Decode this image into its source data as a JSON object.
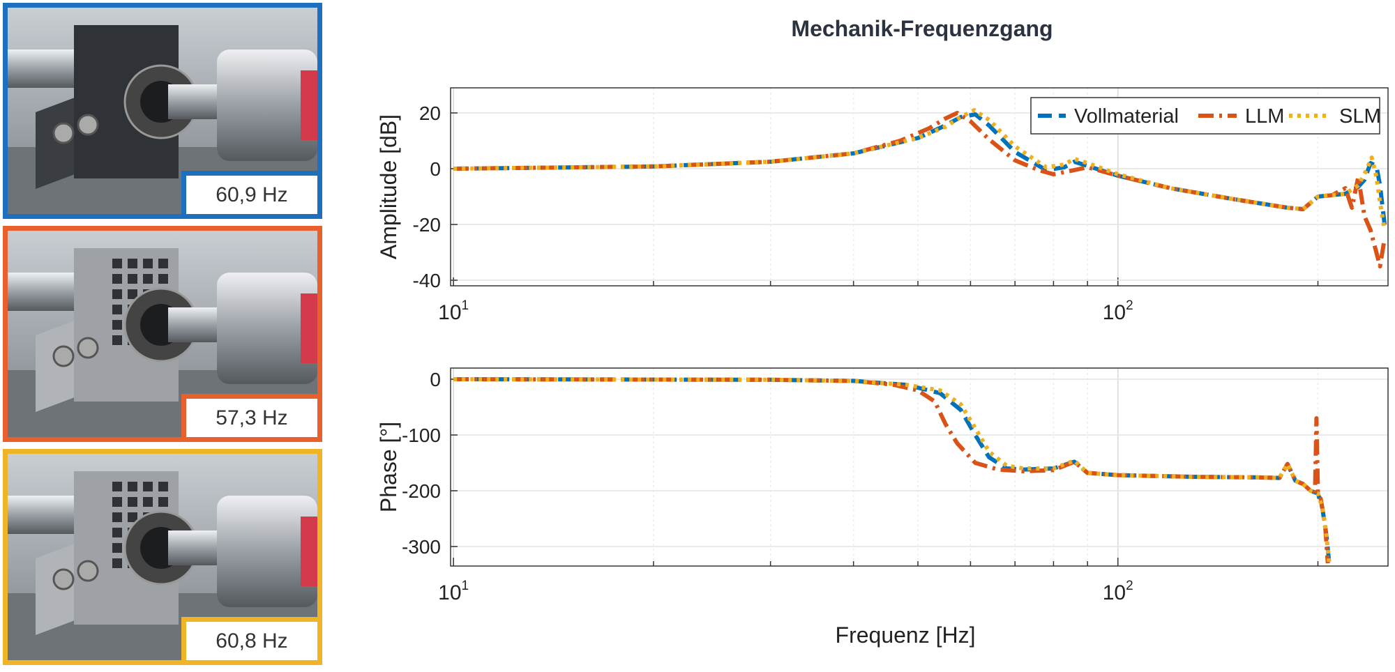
{
  "photos": [
    {
      "label": "60,9 Hz",
      "color": "#1f6fbf",
      "variant": "solid"
    },
    {
      "label": "57,3 Hz",
      "color": "#e8602c",
      "variant": "llm"
    },
    {
      "label": "60,8 Hz",
      "color": "#f0b429",
      "variant": "slm"
    }
  ],
  "chart_data": [
    {
      "type": "line",
      "title": "Mechanik-Frequenzgang",
      "xlabel": "",
      "ylabel": "Amplitude [dB]",
      "xscale": "log",
      "xlim": [
        9.9,
        255
      ],
      "ylim": [
        -42,
        29
      ],
      "yticks": [
        20,
        0,
        -20,
        -40
      ],
      "xtick_labels": [
        {
          "base": "10",
          "exp": "1",
          "value": 10
        },
        {
          "base": "10",
          "exp": "2",
          "value": 100
        }
      ],
      "grid": true,
      "legend": {
        "position": "top-right",
        "entries": [
          "Vollmaterial",
          "LLM",
          "SLM"
        ]
      },
      "series": [
        {
          "name": "Vollmaterial",
          "color": "#0072bd",
          "style": "dashed",
          "x": [
            10,
            20,
            30,
            40,
            50,
            55,
            58,
            61,
            64,
            70,
            78,
            83,
            86,
            90,
            100,
            120,
            150,
            180,
            190,
            200,
            220,
            230,
            235,
            240,
            245,
            248,
            252
          ],
          "y": [
            0,
            0.8,
            2.5,
            5.5,
            11,
            15.5,
            18.5,
            19.5,
            15.5,
            6,
            -0.5,
            0.5,
            2.5,
            1,
            -2.5,
            -7,
            -11,
            -14,
            -14.5,
            -10,
            -9,
            -6.5,
            -4,
            2,
            1,
            -6,
            -20
          ]
        },
        {
          "name": "LLM",
          "color": "#d95319",
          "style": "dashdot",
          "x": [
            10,
            20,
            30,
            40,
            47,
            52,
            55,
            57.3,
            60,
            64,
            70,
            76,
            80,
            84,
            90,
            100,
            120,
            150,
            180,
            190,
            200,
            210,
            220,
            225,
            230,
            235,
            240,
            248,
            252
          ],
          "y": [
            0,
            0.8,
            2.5,
            5.5,
            10,
            14.5,
            18,
            20,
            17,
            10.5,
            3,
            -0.5,
            -2,
            -1,
            0.5,
            -2.5,
            -7,
            -11,
            -14,
            -14.5,
            -10,
            -9.5,
            -7,
            -14,
            -3,
            -17,
            -22,
            -35,
            -25
          ]
        },
        {
          "name": "SLM",
          "color": "#edb120",
          "style": "dotted",
          "x": [
            10,
            20,
            30,
            40,
            50,
            55,
            58,
            60.8,
            64,
            70,
            78,
            83,
            86,
            90,
            100,
            120,
            150,
            180,
            190,
            200,
            220,
            230,
            236,
            241,
            245,
            248,
            252
          ],
          "y": [
            0,
            0.8,
            2.5,
            5.5,
            11,
            15,
            18.5,
            21,
            17.5,
            8,
            0.5,
            1.5,
            3.5,
            2,
            -2,
            -7,
            -11,
            -14,
            -14.5,
            -10,
            -9,
            -6,
            -1,
            4,
            -3,
            -12,
            -22
          ]
        }
      ]
    },
    {
      "type": "line",
      "title": "",
      "xlabel": "Frequenz [Hz]",
      "ylabel": "Phase [°]",
      "xscale": "log",
      "xlim": [
        9.9,
        255
      ],
      "ylim": [
        -335,
        20
      ],
      "yticks": [
        0,
        -100,
        -200,
        -300
      ],
      "xtick_labels": [
        {
          "base": "10",
          "exp": "1",
          "value": 10
        },
        {
          "base": "10",
          "exp": "2",
          "value": 100
        }
      ],
      "grid": true,
      "series": [
        {
          "name": "Vollmaterial",
          "color": "#0072bd",
          "style": "dashed",
          "x": [
            10,
            30,
            40,
            48,
            54,
            58,
            61,
            64,
            68,
            72,
            80,
            86,
            90,
            100,
            130,
            160,
            175,
            180,
            185,
            190,
            195,
            200,
            203,
            206,
            208
          ],
          "y": [
            0,
            -1,
            -3,
            -10,
            -25,
            -55,
            -100,
            -140,
            -160,
            -162,
            -160,
            -148,
            -168,
            -172,
            -175,
            -176,
            -177,
            -152,
            -182,
            -188,
            -200,
            -205,
            -230,
            -280,
            -330
          ]
        },
        {
          "name": "LLM",
          "color": "#d95319",
          "style": "dashdot",
          "x": [
            10,
            30,
            40,
            46,
            50,
            53,
            55,
            57.3,
            61,
            66,
            72,
            80,
            86,
            90,
            100,
            130,
            160,
            175,
            180,
            185,
            190,
            195,
            198,
            199,
            200,
            202,
            205,
            207
          ],
          "y": [
            0,
            -1,
            -3,
            -10,
            -20,
            -40,
            -80,
            -115,
            -150,
            -162,
            -165,
            -163,
            -148,
            -168,
            -172,
            -175,
            -176,
            -177,
            -152,
            -182,
            -188,
            -200,
            -205,
            -70,
            -205,
            -215,
            -260,
            -330
          ]
        },
        {
          "name": "SLM",
          "color": "#edb120",
          "style": "dotted",
          "x": [
            10,
            30,
            40,
            48,
            54,
            58,
            60.8,
            64,
            68,
            72,
            80,
            86,
            90,
            100,
            130,
            160,
            175,
            180,
            185,
            190,
            195,
            200,
            203,
            206,
            208
          ],
          "y": [
            0,
            -1,
            -3,
            -10,
            -20,
            -45,
            -85,
            -130,
            -155,
            -160,
            -160,
            -146,
            -168,
            -172,
            -175,
            -176,
            -177,
            -152,
            -182,
            -188,
            -200,
            -205,
            -230,
            -280,
            -330
          ]
        }
      ]
    }
  ]
}
